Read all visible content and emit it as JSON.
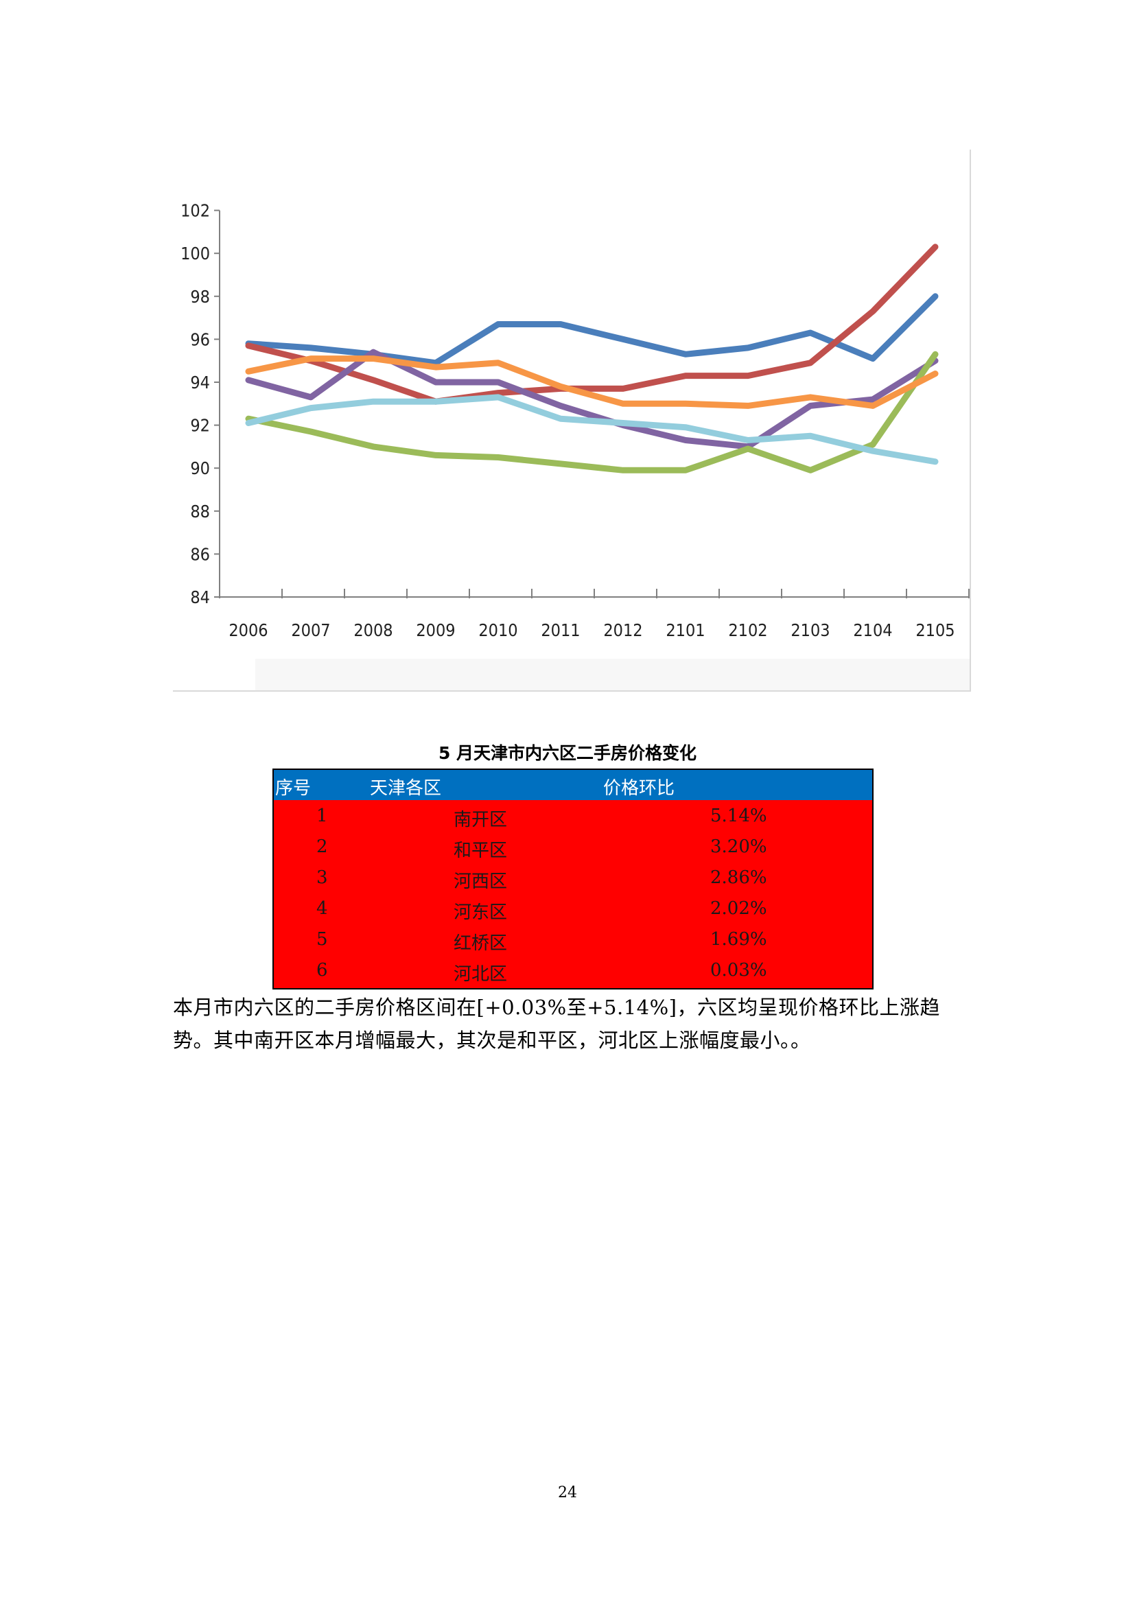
{
  "chart_data": {
    "type": "line",
    "x": [
      "2006",
      "2007",
      "2008",
      "2009",
      "2010",
      "2011",
      "2012",
      "2101",
      "2102",
      "2103",
      "2104",
      "2105"
    ],
    "ylim": [
      84,
      102
    ],
    "yticks": [
      "102",
      "100",
      "98",
      "96",
      "94",
      "92",
      "90",
      "88",
      "86",
      "84"
    ],
    "grid": false,
    "legend": "none",
    "series": [
      {
        "color": "#4a7ebb",
        "values": [
          95.8,
          95.6,
          95.3,
          94.9,
          96.7,
          96.7,
          96.0,
          95.3,
          95.6,
          96.3,
          95.1,
          98.0
        ]
      },
      {
        "color": "#c0504d",
        "values": [
          95.7,
          95.0,
          94.1,
          93.1,
          93.5,
          93.7,
          93.7,
          94.3,
          94.3,
          94.9,
          97.3,
          100.3
        ]
      },
      {
        "color": "#8064a2",
        "values": [
          94.1,
          93.3,
          95.4,
          94.0,
          94.0,
          92.9,
          92.0,
          91.3,
          91.0,
          92.9,
          93.2,
          95.0
        ]
      },
      {
        "color": "#9bbb59",
        "values": [
          92.3,
          91.7,
          91.0,
          90.6,
          90.5,
          90.2,
          89.9,
          89.9,
          90.9,
          89.9,
          91.1,
          95.3
        ]
      },
      {
        "color": "#f79646",
        "values": [
          94.5,
          95.1,
          95.1,
          94.7,
          94.9,
          93.8,
          93.0,
          93.0,
          92.9,
          93.3,
          92.9,
          94.4
        ]
      },
      {
        "color": "#93cddd",
        "values": [
          92.1,
          92.8,
          93.1,
          93.1,
          93.3,
          92.3,
          92.1,
          91.9,
          91.3,
          91.5,
          90.8,
          90.3
        ]
      }
    ]
  },
  "table": {
    "title": "5 月天津市内六区二手房价格变化",
    "headers": {
      "no": "序号",
      "district": "天津各区",
      "ratio": "价格环比"
    },
    "rows": [
      {
        "no": "1",
        "district": "南开区",
        "ratio": "5.14%"
      },
      {
        "no": "2",
        "district": "和平区",
        "ratio": "3.20%"
      },
      {
        "no": "3",
        "district": "河西区",
        "ratio": "2.86%"
      },
      {
        "no": "4",
        "district": "河东区",
        "ratio": "2.02%"
      },
      {
        "no": "5",
        "district": "红桥区",
        "ratio": "1.69%"
      },
      {
        "no": "6",
        "district": "河北区",
        "ratio": "0.03%"
      }
    ]
  },
  "paragraph": "本月市内六区的二手房价格区间在[+0.03%至+5.14%]，六区均呈现价格环比上涨趋势。其中南开区本月增幅最大，其次是和平区，河北区上涨幅度最小。。",
  "page_number": "24"
}
